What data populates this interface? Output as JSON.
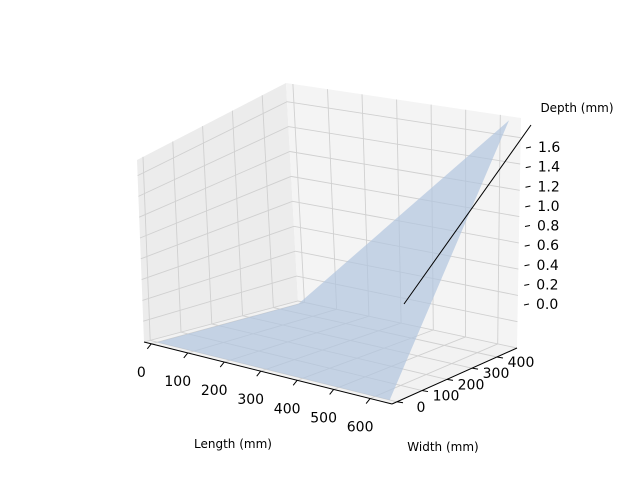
{
  "chart_data": {
    "type": "surface3d",
    "title": "",
    "xlabel": "Length (mm)",
    "ylabel": "Width (mm)",
    "zlabel": "Depth (mm)",
    "xlim": [
      -20,
      660
    ],
    "ylim": [
      -20,
      480
    ],
    "zlim": [
      0,
      1.75
    ],
    "xticks": [
      0,
      100,
      200,
      300,
      400,
      500,
      600
    ],
    "yticks": [
      0,
      100,
      200,
      300,
      400
    ],
    "zticks": [
      0.0,
      0.2,
      0.4,
      0.6,
      0.8,
      1.0,
      1.2,
      1.4,
      1.6
    ],
    "xtick_labels": [
      "0",
      "100",
      "200",
      "300",
      "400",
      "500",
      "600"
    ],
    "ytick_labels": [
      "0",
      "100",
      "200",
      "300",
      "400"
    ],
    "ztick_labels": [
      "0.0",
      "0.2",
      "0.4",
      "0.6",
      "0.8",
      "1.0",
      "1.2",
      "1.4",
      "1.6"
    ],
    "grid": true,
    "surface": {
      "x": [
        0,
        640
      ],
      "y": [
        0,
        460
      ],
      "z": [
        [
          0.0,
          0.0
        ],
        [
          0.0,
          1.75
        ]
      ],
      "color": "#b0c4de",
      "opacity": 0.7
    },
    "pane_color": "#f2f2f2",
    "grid_color": "#d0d0d0"
  }
}
